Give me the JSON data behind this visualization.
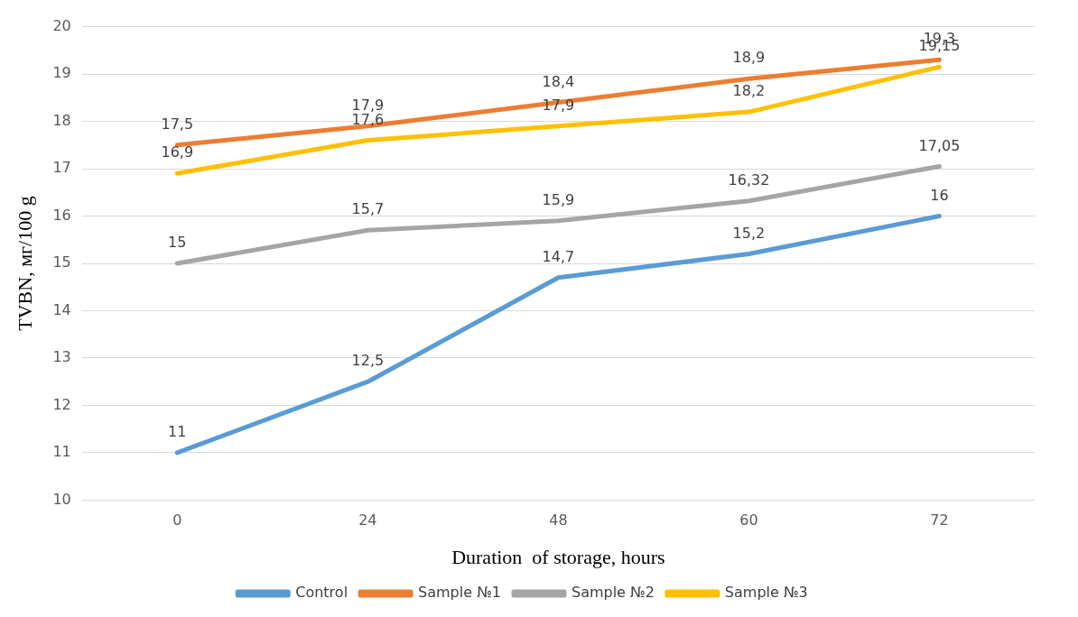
{
  "chart_data": {
    "type": "line",
    "xlabel": "Duration  of storage, hours",
    "ylabel": "TVBN, мг/100 g",
    "categories": [
      "0",
      "24",
      "48",
      "60",
      "72"
    ],
    "series": [
      {
        "name": "Control",
        "color": "#5b9bd5",
        "values": [
          11,
          12.5,
          14.7,
          15.2,
          16
        ],
        "value_labels": [
          "11",
          "12,5",
          "14,7",
          "15,2",
          "16"
        ]
      },
      {
        "name": "Sample №1",
        "color": "#ed7d31",
        "values": [
          17.5,
          17.9,
          18.4,
          18.9,
          19.3
        ],
        "value_labels": [
          "17,5",
          "17,9",
          "18,4",
          "18,9",
          "19,3"
        ]
      },
      {
        "name": "Sample №2",
        "color": "#a5a5a5",
        "values": [
          15,
          15.7,
          15.9,
          16.32,
          17.05
        ],
        "value_labels": [
          "15",
          "15,7",
          "15,9",
          "16,32",
          "17,05"
        ]
      },
      {
        "name": "Sample №3",
        "color": "#ffc000",
        "values": [
          16.9,
          17.6,
          17.9,
          18.2,
          19.15
        ],
        "value_labels": [
          "16,9",
          "17,6",
          "17,9",
          "18,2",
          "19,15"
        ]
      }
    ],
    "ylim": [
      10,
      20
    ],
    "yticks": [
      10,
      11,
      12,
      13,
      14,
      15,
      16,
      17,
      18,
      19,
      20
    ],
    "grid": "y",
    "legend": "bottom",
    "marker": "none",
    "line_style": "solid"
  }
}
